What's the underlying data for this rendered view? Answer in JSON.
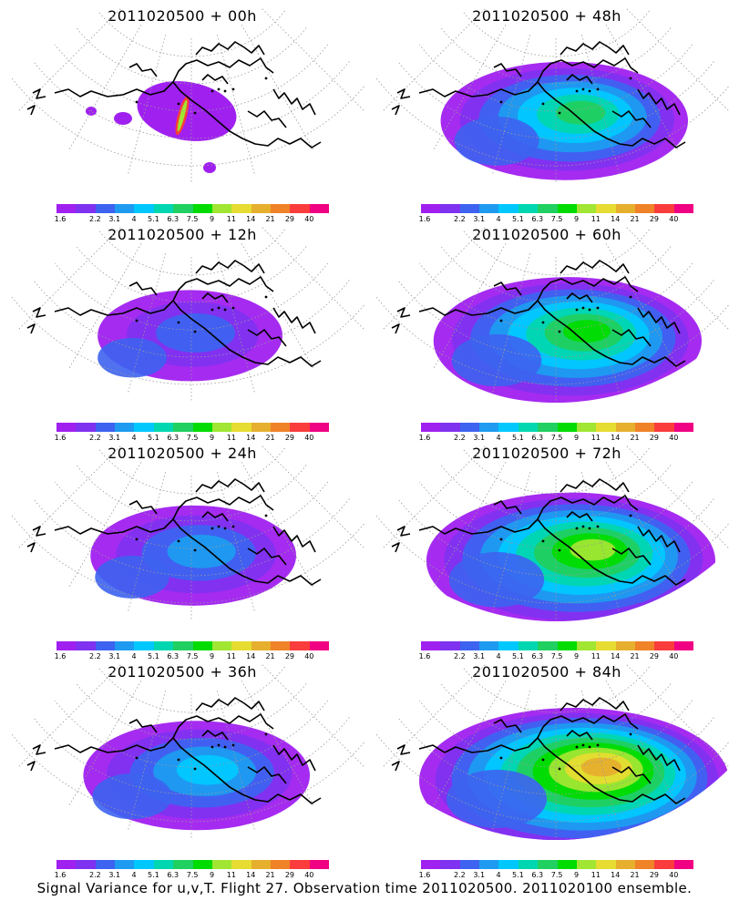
{
  "panels": [
    {
      "title": "2011020500 + 00h",
      "level": 0
    },
    {
      "title": "2011020500 + 48h",
      "level": 4
    },
    {
      "title": "2011020500 + 12h",
      "level": 1
    },
    {
      "title": "2011020500 + 60h",
      "level": 5
    },
    {
      "title": "2011020500 + 24h",
      "level": 2
    },
    {
      "title": "2011020500 + 72h",
      "level": 6
    },
    {
      "title": "2011020500 + 36h",
      "level": 3
    },
    {
      "title": "2011020500 + 84h",
      "level": 7
    }
  ],
  "colorbar": {
    "labels": [
      "1.6",
      "2.2",
      "3.1",
      "4",
      "5.1",
      "6.3",
      "7.5",
      "9",
      "11",
      "14",
      "21",
      "29",
      "40"
    ],
    "colors": [
      "#a020f0",
      "#7f32f0",
      "#3d63f0",
      "#1e9bf0",
      "#00c8ff",
      "#00d7b0",
      "#20d060",
      "#00dc00",
      "#a0e632",
      "#e6dc32",
      "#e6af2d",
      "#f08228",
      "#fa3c3c",
      "#f00082"
    ]
  },
  "caption": "Signal Variance for u,v,T. Flight 27. Observation time 2011020500. 2011020100 ensemble."
}
